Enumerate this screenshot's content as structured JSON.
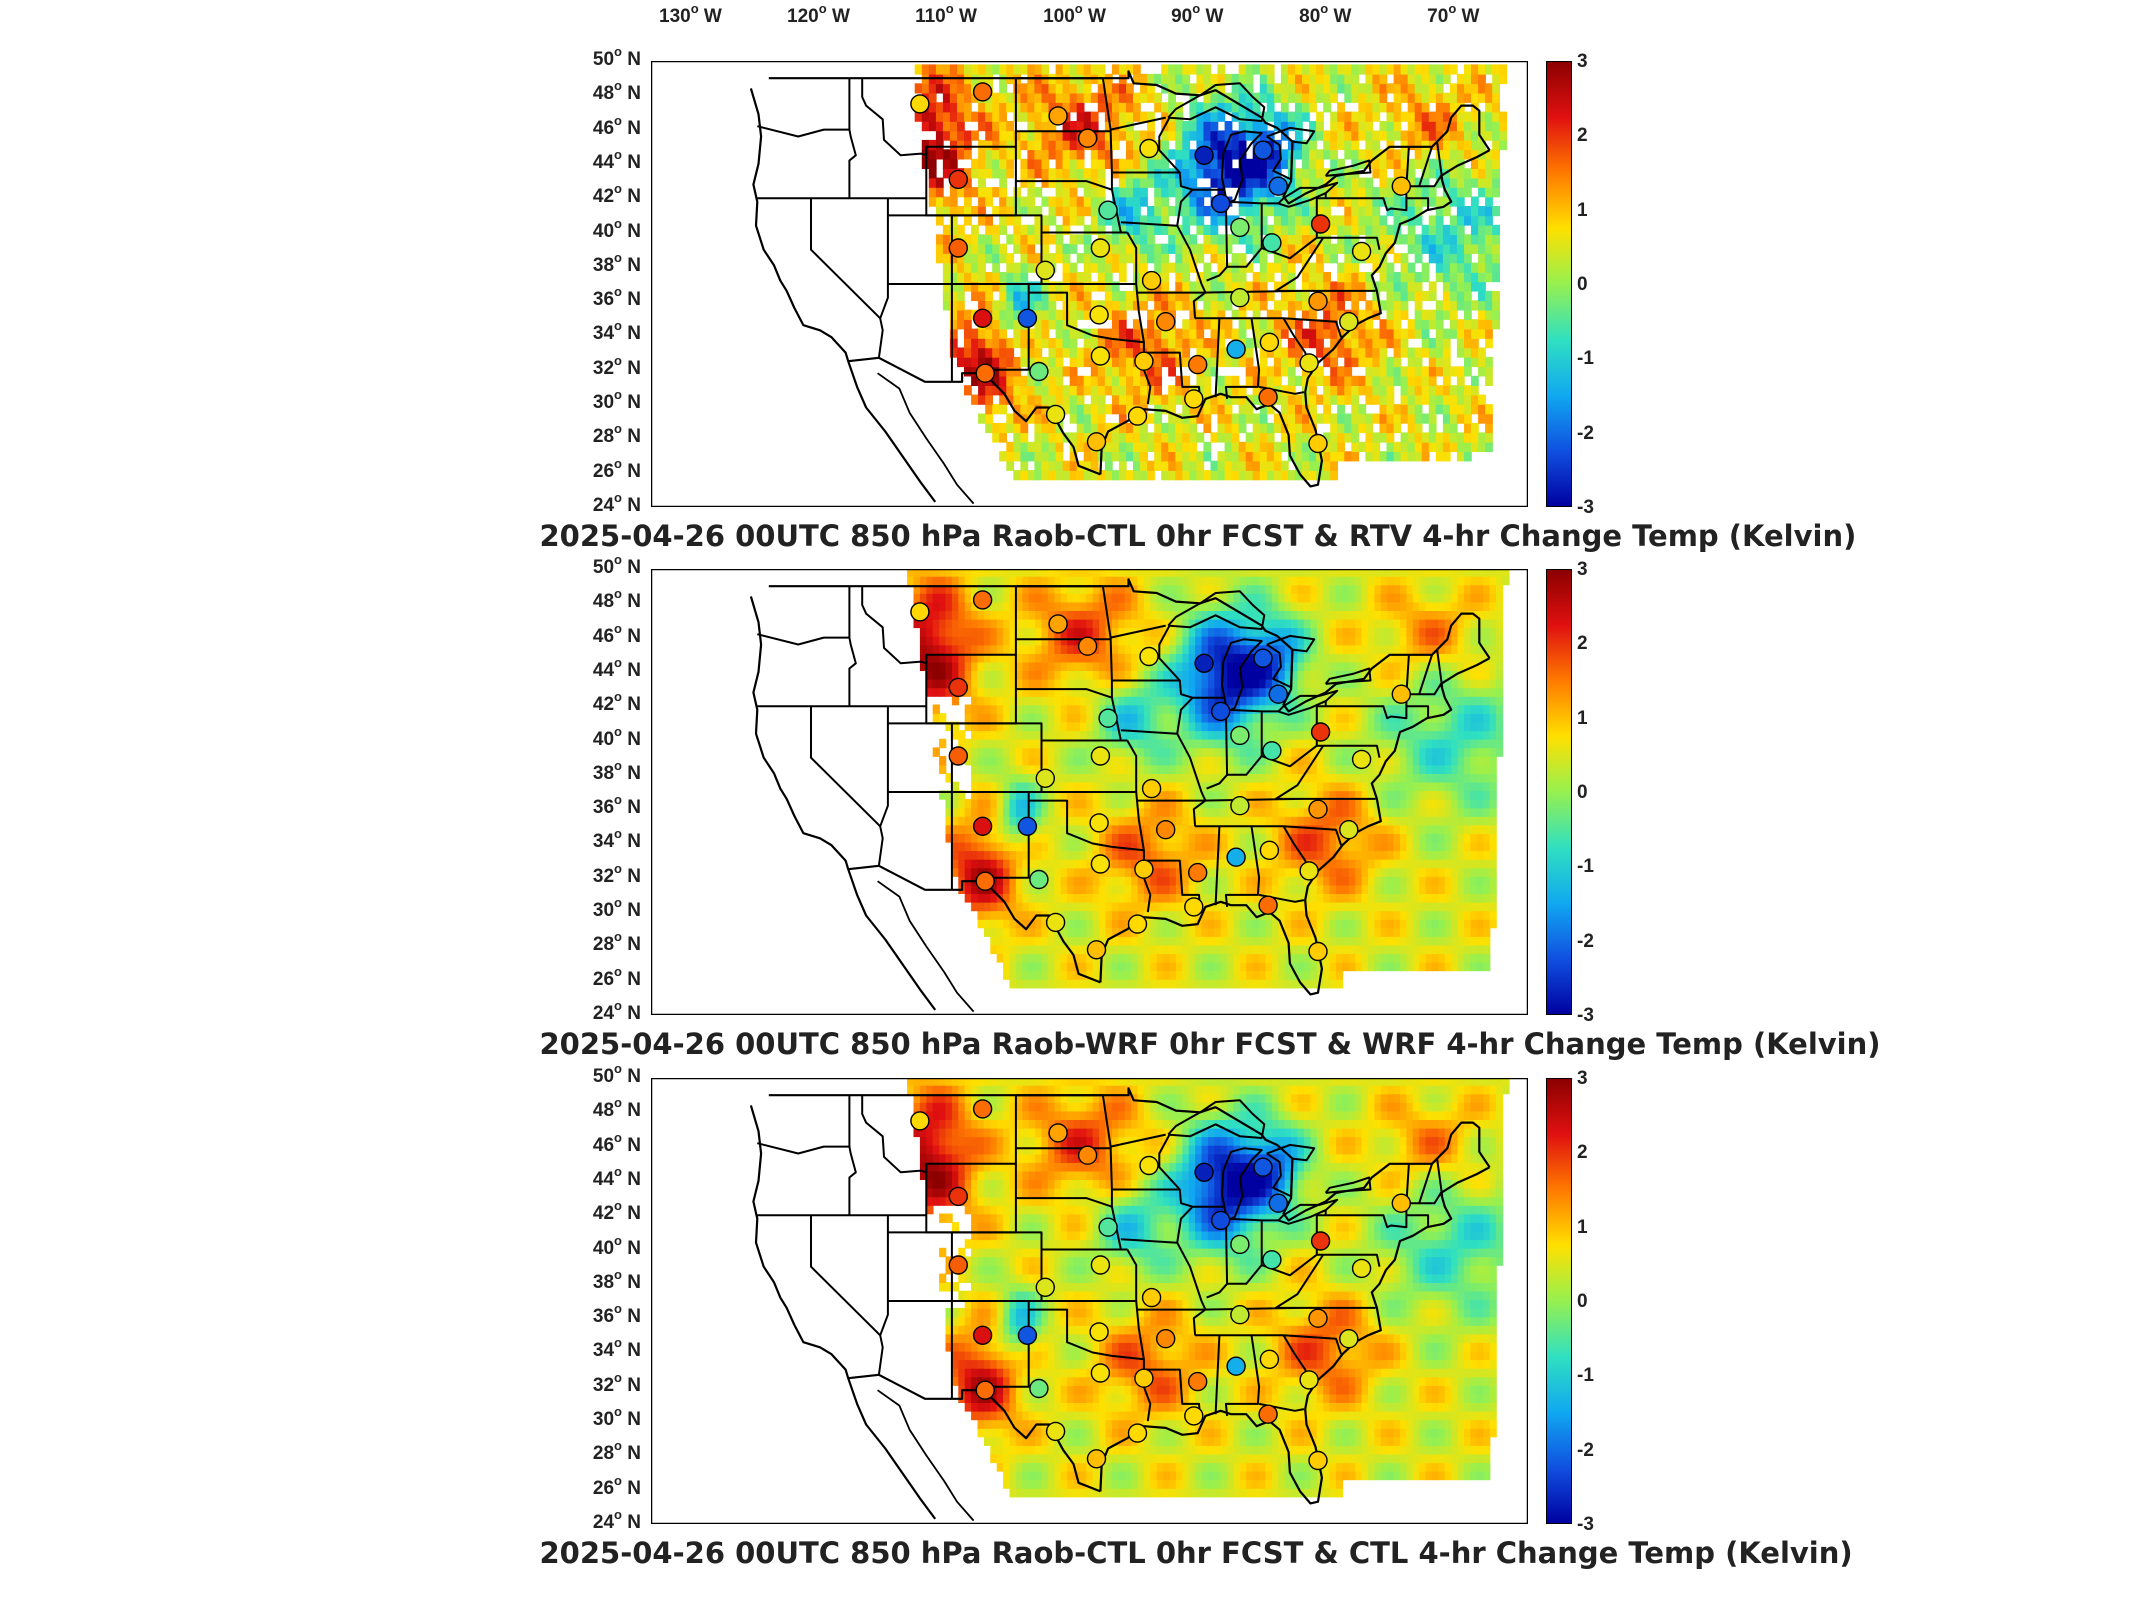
{
  "lon_labels": [
    "130",
    "120",
    "110",
    "100",
    "90",
    "80",
    "70"
  ],
  "lon_suffix": "W",
  "lat_labels": [
    "50",
    "48",
    "46",
    "44",
    "42",
    "40",
    "38",
    "36",
    "34",
    "32",
    "30",
    "28",
    "26",
    "24"
  ],
  "lat_suffix": "N",
  "colorbar": {
    "ticks": [
      "3",
      "2",
      "1",
      "0",
      "-1",
      "-2",
      "-3"
    ],
    "range": [
      -3,
      3
    ],
    "colors": [
      "#8b0000",
      "#e01010",
      "#ff7a00",
      "#ffe000",
      "#96f050",
      "#30e0c0",
      "#10a8f0",
      "#1050e0",
      "#0000a0"
    ]
  },
  "panels": [
    {
      "title": "2025-04-26 00UTC 850 hPa Raob-CTL 0hr FCST & RTV 4-hr Change Temp (Kelvin)",
      "field_type": "retrieval"
    },
    {
      "title": "2025-04-26 00UTC 850 hPa Raob-WRF 0hr FCST & WRF 4-hr Change Temp (Kelvin)",
      "field_type": "model"
    },
    {
      "title": "2025-04-26 00UTC 850 hPa Raob-CTL 0hr FCST & CTL 4-hr Change Temp (Kelvin)",
      "field_type": "model"
    }
  ],
  "stations": [
    {
      "lon": -111.5,
      "lat": 47.5,
      "value": 0.8
    },
    {
      "lon": -106.6,
      "lat": 48.2,
      "value": 1.6
    },
    {
      "lon": -100.7,
      "lat": 46.8,
      "value": 1.2
    },
    {
      "lon": -98.4,
      "lat": 45.5,
      "value": 1.4
    },
    {
      "lon": -93.6,
      "lat": 44.9,
      "value": 0.7
    },
    {
      "lon": -108.5,
      "lat": 43.1,
      "value": 2.0
    },
    {
      "lon": -89.3,
      "lat": 44.5,
      "value": -2.7
    },
    {
      "lon": -84.7,
      "lat": 44.8,
      "value": -2.2
    },
    {
      "lon": -83.5,
      "lat": 42.7,
      "value": -2.0
    },
    {
      "lon": -88.0,
      "lat": 41.7,
      "value": -2.3
    },
    {
      "lon": -96.8,
      "lat": 41.3,
      "value": -0.5
    },
    {
      "lon": -86.5,
      "lat": 40.3,
      "value": -0.2
    },
    {
      "lon": -84.0,
      "lat": 39.4,
      "value": -0.6
    },
    {
      "lon": -80.2,
      "lat": 40.5,
      "value": 2.0
    },
    {
      "lon": -73.9,
      "lat": 42.7,
      "value": 1.0
    },
    {
      "lon": -108.5,
      "lat": 39.1,
      "value": 1.7
    },
    {
      "lon": -101.7,
      "lat": 37.8,
      "value": 0.5
    },
    {
      "lon": -97.4,
      "lat": 39.1,
      "value": 0.6
    },
    {
      "lon": -93.4,
      "lat": 37.2,
      "value": 0.9
    },
    {
      "lon": -106.6,
      "lat": 35.0,
      "value": 2.3
    },
    {
      "lon": -103.1,
      "lat": 35.0,
      "value": -2.2
    },
    {
      "lon": -97.5,
      "lat": 35.2,
      "value": 0.7
    },
    {
      "lon": -92.3,
      "lat": 34.8,
      "value": 1.4
    },
    {
      "lon": -86.5,
      "lat": 36.2,
      "value": 0.3
    },
    {
      "lon": -80.4,
      "lat": 36.0,
      "value": 1.3
    },
    {
      "lon": -77.0,
      "lat": 38.9,
      "value": 0.6
    },
    {
      "lon": -86.8,
      "lat": 33.2,
      "value": -1.4
    },
    {
      "lon": -84.2,
      "lat": 33.6,
      "value": 0.8
    },
    {
      "lon": -89.8,
      "lat": 32.3,
      "value": 1.5
    },
    {
      "lon": -94.0,
      "lat": 32.5,
      "value": 0.9
    },
    {
      "lon": -97.4,
      "lat": 32.8,
      "value": 0.7
    },
    {
      "lon": -102.2,
      "lat": 31.9,
      "value": -0.3
    },
    {
      "lon": -106.4,
      "lat": 31.8,
      "value": 1.6
    },
    {
      "lon": -81.1,
      "lat": 32.4,
      "value": 0.6
    },
    {
      "lon": -78.0,
      "lat": 34.8,
      "value": 0.5
    },
    {
      "lon": -90.1,
      "lat": 30.3,
      "value": 0.8
    },
    {
      "lon": -84.3,
      "lat": 30.4,
      "value": 1.6
    },
    {
      "lon": -97.7,
      "lat": 27.8,
      "value": 1.0
    },
    {
      "lon": -94.5,
      "lat": 29.3,
      "value": 0.8
    },
    {
      "lon": -100.9,
      "lat": 29.4,
      "value": 0.6
    },
    {
      "lon": -80.4,
      "lat": 27.7,
      "value": 0.9
    }
  ]
}
